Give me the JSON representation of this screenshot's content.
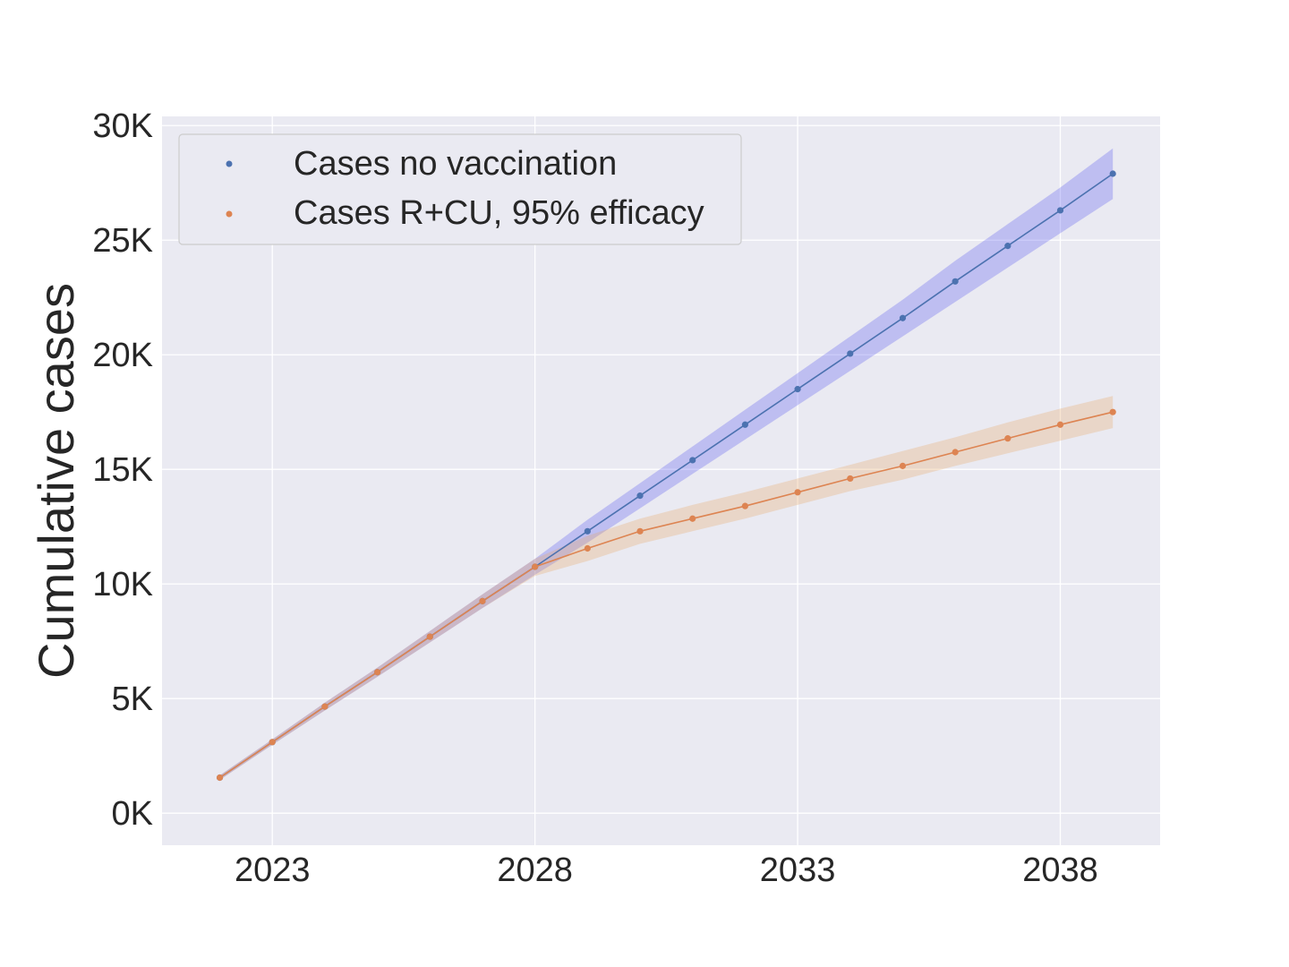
{
  "chart_data": {
    "type": "line",
    "title": "",
    "xlabel": "",
    "ylabel": "Cumulative cases",
    "x": [
      2022,
      2023,
      2024,
      2025,
      2026,
      2027,
      2028,
      2029,
      2030,
      2031,
      2032,
      2033,
      2034,
      2035,
      2036,
      2037,
      2038,
      2039
    ],
    "xlim": [
      2020.9,
      2039.9
    ],
    "ylim": [
      -1400,
      30400
    ],
    "x_ticks": [
      2023,
      2028,
      2033,
      2038
    ],
    "x_tick_labels": [
      "2023",
      "2028",
      "2033",
      "2038"
    ],
    "y_ticks": [
      0,
      5000,
      10000,
      15000,
      20000,
      25000,
      30000
    ],
    "y_tick_labels": [
      "0K",
      "5K",
      "10K",
      "15K",
      "20K",
      "25K",
      "30K"
    ],
    "grid": true,
    "legend_position": "top-left",
    "series": [
      {
        "name": "Cases no vaccination",
        "color": "#4c72b0",
        "band_color": "#5b5bef",
        "values": [
          1550,
          3100,
          4650,
          6150,
          7700,
          9250,
          10750,
          12300,
          13850,
          15400,
          16950,
          18500,
          20050,
          21600,
          23200,
          24750,
          26300,
          27900
        ],
        "lower": [
          1450,
          2980,
          4480,
          5950,
          7450,
          8950,
          10400,
          11800,
          13300,
          14800,
          16300,
          17800,
          19300,
          20800,
          22300,
          23800,
          25300,
          26800
        ],
        "upper": [
          1650,
          3220,
          4820,
          6350,
          7950,
          9550,
          11100,
          12800,
          14400,
          16000,
          17600,
          19200,
          20800,
          22400,
          24100,
          25700,
          27300,
          29000
        ]
      },
      {
        "name": "Cases R+CU, 95% efficacy",
        "color": "#dd8452",
        "band_color": "#e8a868",
        "values": [
          1550,
          3100,
          4650,
          6150,
          7700,
          9250,
          10750,
          11550,
          12300,
          12850,
          13400,
          14000,
          14600,
          15150,
          15750,
          16350,
          16950,
          17500
        ],
        "lower": [
          1450,
          2980,
          4480,
          5950,
          7450,
          8950,
          10350,
          11000,
          11750,
          12300,
          12850,
          13450,
          14050,
          14550,
          15150,
          15700,
          16250,
          16800
        ],
        "upper": [
          1650,
          3220,
          4820,
          6350,
          7950,
          9550,
          11100,
          12100,
          12850,
          13450,
          14000,
          14600,
          15200,
          15800,
          16400,
          17050,
          17650,
          18200
        ]
      }
    ]
  }
}
